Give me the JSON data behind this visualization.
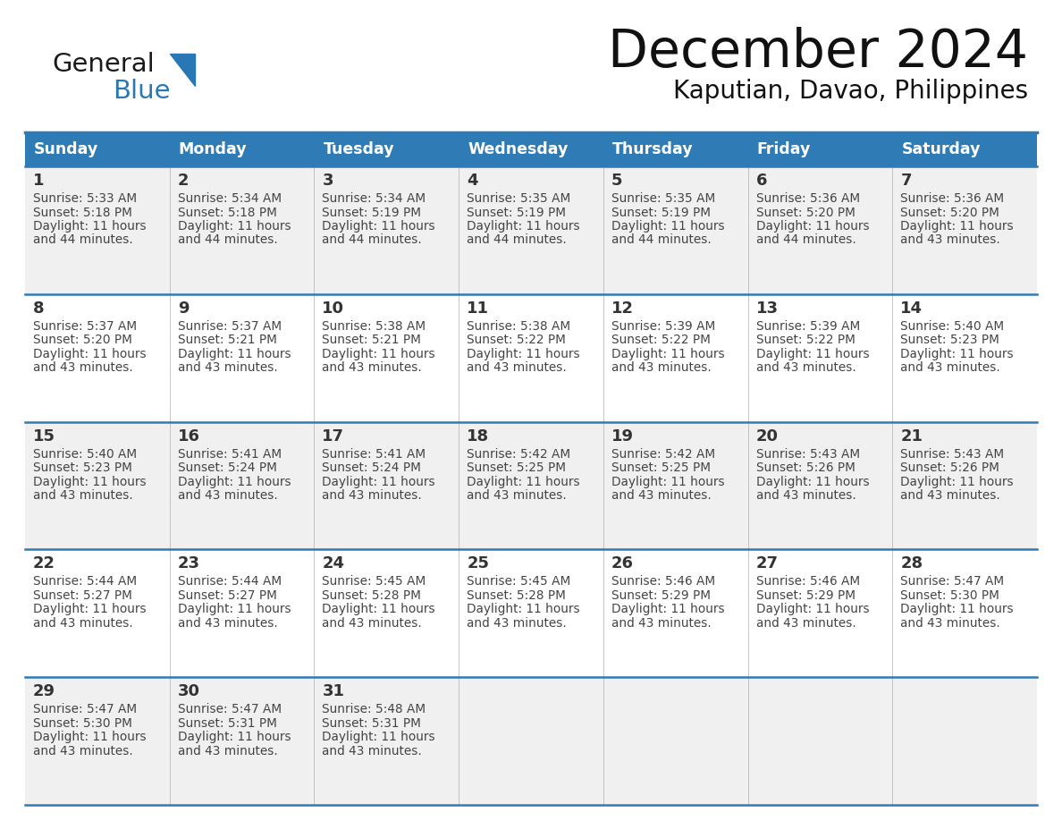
{
  "title": "December 2024",
  "subtitle": "Kaputian, Davao, Philippines",
  "days_of_week": [
    "Sunday",
    "Monday",
    "Tuesday",
    "Wednesday",
    "Thursday",
    "Friday",
    "Saturday"
  ],
  "header_bg_color": "#2E7BB5",
  "header_text_color": "#FFFFFF",
  "cell_bg_row0": "#F0F0F0",
  "cell_bg_row1": "#FFFFFF",
  "cell_bg_row2": "#F0F0F0",
  "cell_bg_row3": "#FFFFFF",
  "cell_bg_row4": "#F0F0F0",
  "day_num_color": "#333333",
  "cell_text_color": "#444444",
  "divider_color": "#2E7BB5",
  "title_color": "#111111",
  "subtitle_color": "#111111",
  "logo_general_color": "#1A1A1A",
  "logo_blue_color": "#2878B5",
  "calendar_data": [
    {
      "day": 1,
      "col": 0,
      "row": 0,
      "sunrise": "5:33 AM",
      "sunset": "5:18 PM",
      "daylight_suffix": "44 minutes."
    },
    {
      "day": 2,
      "col": 1,
      "row": 0,
      "sunrise": "5:34 AM",
      "sunset": "5:18 PM",
      "daylight_suffix": "44 minutes."
    },
    {
      "day": 3,
      "col": 2,
      "row": 0,
      "sunrise": "5:34 AM",
      "sunset": "5:19 PM",
      "daylight_suffix": "44 minutes."
    },
    {
      "day": 4,
      "col": 3,
      "row": 0,
      "sunrise": "5:35 AM",
      "sunset": "5:19 PM",
      "daylight_suffix": "44 minutes."
    },
    {
      "day": 5,
      "col": 4,
      "row": 0,
      "sunrise": "5:35 AM",
      "sunset": "5:19 PM",
      "daylight_suffix": "44 minutes."
    },
    {
      "day": 6,
      "col": 5,
      "row": 0,
      "sunrise": "5:36 AM",
      "sunset": "5:20 PM",
      "daylight_suffix": "44 minutes."
    },
    {
      "day": 7,
      "col": 6,
      "row": 0,
      "sunrise": "5:36 AM",
      "sunset": "5:20 PM",
      "daylight_suffix": "43 minutes."
    },
    {
      "day": 8,
      "col": 0,
      "row": 1,
      "sunrise": "5:37 AM",
      "sunset": "5:20 PM",
      "daylight_suffix": "43 minutes."
    },
    {
      "day": 9,
      "col": 1,
      "row": 1,
      "sunrise": "5:37 AM",
      "sunset": "5:21 PM",
      "daylight_suffix": "43 minutes."
    },
    {
      "day": 10,
      "col": 2,
      "row": 1,
      "sunrise": "5:38 AM",
      "sunset": "5:21 PM",
      "daylight_suffix": "43 minutes."
    },
    {
      "day": 11,
      "col": 3,
      "row": 1,
      "sunrise": "5:38 AM",
      "sunset": "5:22 PM",
      "daylight_suffix": "43 minutes."
    },
    {
      "day": 12,
      "col": 4,
      "row": 1,
      "sunrise": "5:39 AM",
      "sunset": "5:22 PM",
      "daylight_suffix": "43 minutes."
    },
    {
      "day": 13,
      "col": 5,
      "row": 1,
      "sunrise": "5:39 AM",
      "sunset": "5:22 PM",
      "daylight_suffix": "43 minutes."
    },
    {
      "day": 14,
      "col": 6,
      "row": 1,
      "sunrise": "5:40 AM",
      "sunset": "5:23 PM",
      "daylight_suffix": "43 minutes."
    },
    {
      "day": 15,
      "col": 0,
      "row": 2,
      "sunrise": "5:40 AM",
      "sunset": "5:23 PM",
      "daylight_suffix": "43 minutes."
    },
    {
      "day": 16,
      "col": 1,
      "row": 2,
      "sunrise": "5:41 AM",
      "sunset": "5:24 PM",
      "daylight_suffix": "43 minutes."
    },
    {
      "day": 17,
      "col": 2,
      "row": 2,
      "sunrise": "5:41 AM",
      "sunset": "5:24 PM",
      "daylight_suffix": "43 minutes."
    },
    {
      "day": 18,
      "col": 3,
      "row": 2,
      "sunrise": "5:42 AM",
      "sunset": "5:25 PM",
      "daylight_suffix": "43 minutes."
    },
    {
      "day": 19,
      "col": 4,
      "row": 2,
      "sunrise": "5:42 AM",
      "sunset": "5:25 PM",
      "daylight_suffix": "43 minutes."
    },
    {
      "day": 20,
      "col": 5,
      "row": 2,
      "sunrise": "5:43 AM",
      "sunset": "5:26 PM",
      "daylight_suffix": "43 minutes."
    },
    {
      "day": 21,
      "col": 6,
      "row": 2,
      "sunrise": "5:43 AM",
      "sunset": "5:26 PM",
      "daylight_suffix": "43 minutes."
    },
    {
      "day": 22,
      "col": 0,
      "row": 3,
      "sunrise": "5:44 AM",
      "sunset": "5:27 PM",
      "daylight_suffix": "43 minutes."
    },
    {
      "day": 23,
      "col": 1,
      "row": 3,
      "sunrise": "5:44 AM",
      "sunset": "5:27 PM",
      "daylight_suffix": "43 minutes."
    },
    {
      "day": 24,
      "col": 2,
      "row": 3,
      "sunrise": "5:45 AM",
      "sunset": "5:28 PM",
      "daylight_suffix": "43 minutes."
    },
    {
      "day": 25,
      "col": 3,
      "row": 3,
      "sunrise": "5:45 AM",
      "sunset": "5:28 PM",
      "daylight_suffix": "43 minutes."
    },
    {
      "day": 26,
      "col": 4,
      "row": 3,
      "sunrise": "5:46 AM",
      "sunset": "5:29 PM",
      "daylight_suffix": "43 minutes."
    },
    {
      "day": 27,
      "col": 5,
      "row": 3,
      "sunrise": "5:46 AM",
      "sunset": "5:29 PM",
      "daylight_suffix": "43 minutes."
    },
    {
      "day": 28,
      "col": 6,
      "row": 3,
      "sunrise": "5:47 AM",
      "sunset": "5:30 PM",
      "daylight_suffix": "43 minutes."
    },
    {
      "day": 29,
      "col": 0,
      "row": 4,
      "sunrise": "5:47 AM",
      "sunset": "5:30 PM",
      "daylight_suffix": "43 minutes."
    },
    {
      "day": 30,
      "col": 1,
      "row": 4,
      "sunrise": "5:47 AM",
      "sunset": "5:31 PM",
      "daylight_suffix": "43 minutes."
    },
    {
      "day": 31,
      "col": 2,
      "row": 4,
      "sunrise": "5:48 AM",
      "sunset": "5:31 PM",
      "daylight_suffix": "43 minutes."
    }
  ]
}
